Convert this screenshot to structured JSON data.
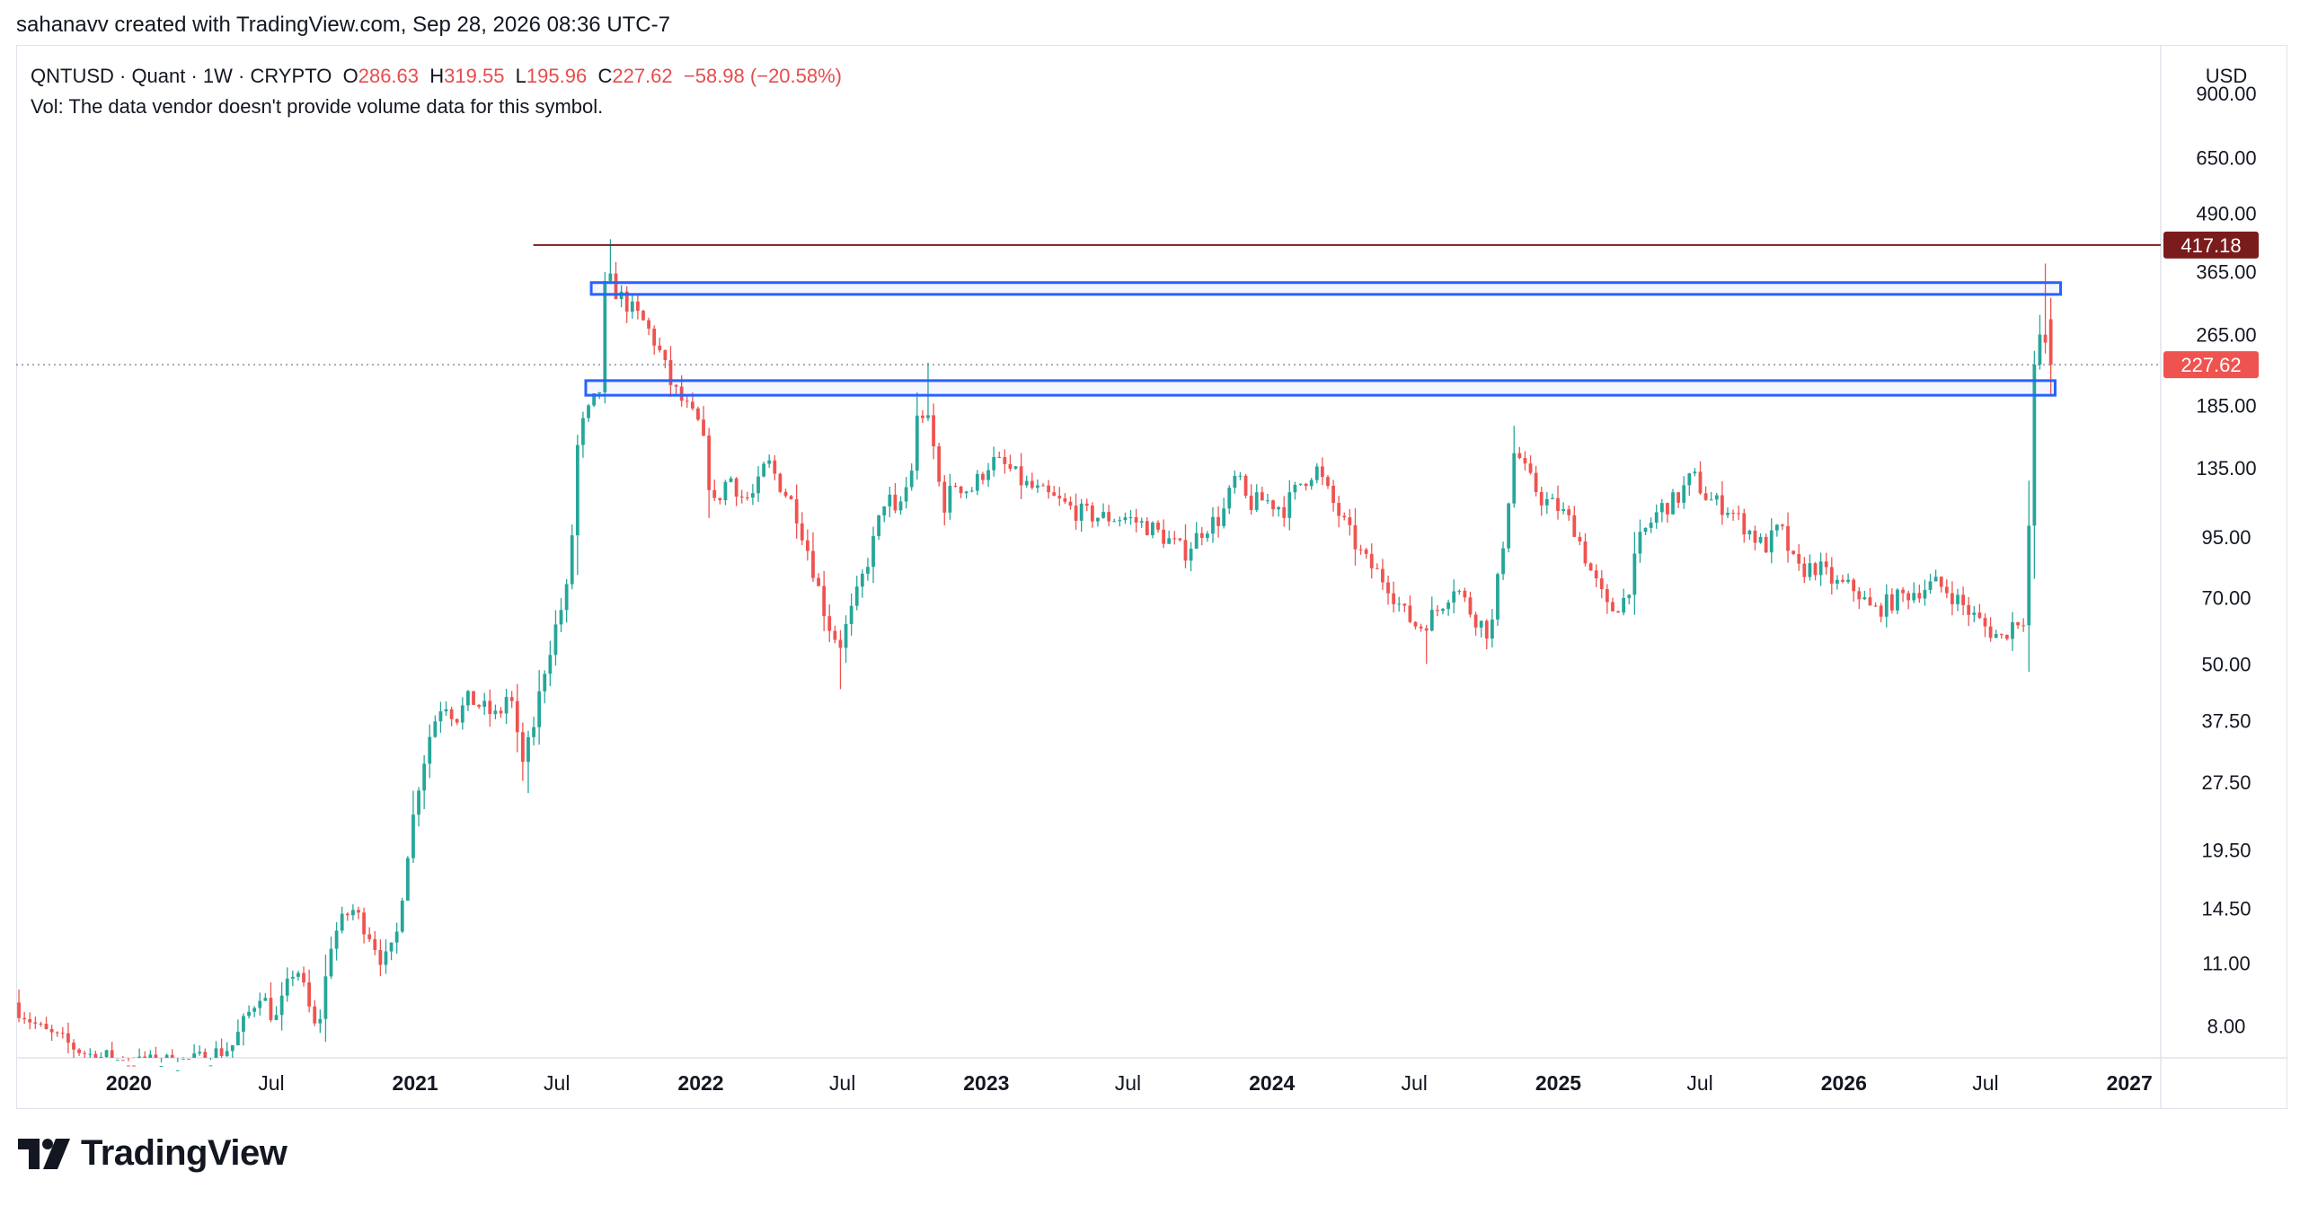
{
  "header": {
    "credit": "sahanavv created with TradingView.com, Sep 28, 2026 08:36 UTC-7"
  },
  "legend": {
    "symbol": "QNTUSD · Quant · 1W · CRYPTO",
    "o_label": "O",
    "o_value": "286.63",
    "h_label": "H",
    "h_value": "319.55",
    "l_label": "L",
    "l_value": "195.96",
    "c_label": "C",
    "c_value": "227.62",
    "change": "−58.98 (−20.58%)",
    "vol_note": "Vol: The data vendor doesn't provide volume data for this symbol."
  },
  "currency": "USD",
  "brand": "TradingView",
  "colors": {
    "up": "#26a69a",
    "down": "#ef5350",
    "resistance": "#7b1c1c",
    "zone": "#2962ff",
    "last_price": "#ef5350"
  },
  "chart_data": {
    "type": "candlestick",
    "symbol": "QNTUSD",
    "interval": "1W",
    "y_scale": "log",
    "ylim": [
      6.8,
      1150
    ],
    "xlim": [
      "2019-08-10",
      "2027-02-10"
    ],
    "y_ticks": [
      "900.00",
      "650.00",
      "490.00",
      "365.00",
      "265.00",
      "185.00",
      "135.00",
      "95.00",
      "70.00",
      "50.00",
      "37.50",
      "27.50",
      "19.50",
      "14.50",
      "11.00",
      "8.00"
    ],
    "x_ticks": [
      {
        "label": "2020",
        "date": "2020-01-01",
        "bold": true
      },
      {
        "label": "Jul",
        "date": "2020-07-01",
        "bold": false
      },
      {
        "label": "2021",
        "date": "2021-01-01",
        "bold": true
      },
      {
        "label": "Jul",
        "date": "2021-07-01",
        "bold": false
      },
      {
        "label": "2022",
        "date": "2022-01-01",
        "bold": true
      },
      {
        "label": "Jul",
        "date": "2022-07-01",
        "bold": false
      },
      {
        "label": "2023",
        "date": "2023-01-01",
        "bold": true
      },
      {
        "label": "Jul",
        "date": "2023-07-01",
        "bold": false
      },
      {
        "label": "2024",
        "date": "2024-01-01",
        "bold": true
      },
      {
        "label": "Jul",
        "date": "2024-07-01",
        "bold": false
      },
      {
        "label": "2025",
        "date": "2025-01-01",
        "bold": true
      },
      {
        "label": "Jul",
        "date": "2025-07-01",
        "bold": false
      },
      {
        "label": "2026",
        "date": "2026-01-01",
        "bold": true
      },
      {
        "label": "Jul",
        "date": "2026-07-01",
        "bold": false
      },
      {
        "label": "2027",
        "date": "2027-01-01",
        "bold": true
      }
    ],
    "resistance_line": {
      "value": 417.18,
      "label": "417.18",
      "start": "2021-06-01"
    },
    "last_price": {
      "value": 227.62,
      "label": "227.62"
    },
    "zones": [
      {
        "start": "2021-08-14",
        "end": "2026-10-05",
        "low": 325,
        "high": 345
      },
      {
        "start": "2021-08-07",
        "end": "2026-09-28",
        "low": 195,
        "high": 210
      }
    ],
    "anchors": [
      [
        "2019-08-10",
        9
      ],
      [
        "2019-09-15",
        7.8
      ],
      [
        "2019-11-15",
        6.9
      ],
      [
        "2020-01-15",
        6.6
      ],
      [
        "2020-04-01",
        6.7
      ],
      [
        "2020-05-15",
        7.2
      ],
      [
        "2020-06-20",
        9.5
      ],
      [
        "2020-07-10",
        8.2
      ],
      [
        "2020-08-05",
        11
      ],
      [
        "2020-09-01",
        7.6
      ],
      [
        "2020-09-20",
        12.5
      ],
      [
        "2020-10-15",
        14.5
      ],
      [
        "2020-11-05",
        13
      ],
      [
        "2020-11-25",
        11
      ],
      [
        "2020-12-10",
        12
      ],
      [
        "2020-12-25",
        19
      ],
      [
        "2021-01-10",
        28
      ],
      [
        "2021-01-25",
        36
      ],
      [
        "2021-02-10",
        42
      ],
      [
        "2021-02-25",
        38
      ],
      [
        "2021-03-15",
        42
      ],
      [
        "2021-04-01",
        40
      ],
      [
        "2021-04-20",
        38
      ],
      [
        "2021-05-05",
        44
      ],
      [
        "2021-05-20",
        30
      ],
      [
        "2021-06-01",
        34
      ],
      [
        "2021-06-20",
        50
      ],
      [
        "2021-07-05",
        62
      ],
      [
        "2021-07-20",
        75
      ],
      [
        "2021-08-01",
        160
      ],
      [
        "2021-08-15",
        180
      ],
      [
        "2021-08-28",
        200
      ],
      [
        "2021-09-05",
        360
      ],
      [
        "2021-09-18",
        330
      ],
      [
        "2021-10-05",
        305
      ],
      [
        "2021-10-25",
        280
      ],
      [
        "2021-11-10",
        250
      ],
      [
        "2021-11-28",
        205
      ],
      [
        "2021-12-15",
        185
      ],
      [
        "2022-01-05",
        165
      ],
      [
        "2022-01-20",
        110
      ],
      [
        "2022-02-10",
        130
      ],
      [
        "2022-02-28",
        115
      ],
      [
        "2022-03-15",
        118
      ],
      [
        "2022-03-30",
        140
      ],
      [
        "2022-04-15",
        125
      ],
      [
        "2022-05-05",
        110
      ],
      [
        "2022-05-25",
        85
      ],
      [
        "2022-06-15",
        62
      ],
      [
        "2022-07-01",
        55
      ],
      [
        "2022-07-20",
        68
      ],
      [
        "2022-08-15",
        95
      ],
      [
        "2022-08-30",
        120
      ],
      [
        "2022-09-10",
        105
      ],
      [
        "2022-09-30",
        130
      ],
      [
        "2022-10-10",
        185
      ],
      [
        "2022-10-25",
        165
      ],
      [
        "2022-11-10",
        110
      ],
      [
        "2022-11-25",
        125
      ],
      [
        "2022-12-15",
        120
      ],
      [
        "2023-01-10",
        140
      ],
      [
        "2023-02-01",
        135
      ],
      [
        "2023-02-20",
        125
      ],
      [
        "2023-03-10",
        120
      ],
      [
        "2023-04-01",
        115
      ],
      [
        "2023-05-01",
        108
      ],
      [
        "2023-06-01",
        105
      ],
      [
        "2023-07-01",
        105
      ],
      [
        "2023-08-01",
        100
      ],
      [
        "2023-08-20",
        95
      ],
      [
        "2023-09-15",
        88
      ],
      [
        "2023-10-10",
        100
      ],
      [
        "2023-11-01",
        105
      ],
      [
        "2023-11-20",
        130
      ],
      [
        "2023-12-05",
        112
      ],
      [
        "2023-12-25",
        115
      ],
      [
        "2024-01-20",
        110
      ],
      [
        "2024-02-10",
        125
      ],
      [
        "2024-03-01",
        135
      ],
      [
        "2024-03-20",
        115
      ],
      [
        "2024-04-15",
        95
      ],
      [
        "2024-05-01",
        85
      ],
      [
        "2024-06-01",
        75
      ],
      [
        "2024-06-20",
        65
      ],
      [
        "2024-07-10",
        60
      ],
      [
        "2024-08-01",
        65
      ],
      [
        "2024-08-25",
        75
      ],
      [
        "2024-09-15",
        65
      ],
      [
        "2024-10-10",
        58
      ],
      [
        "2024-10-25",
        90
      ],
      [
        "2024-11-10",
        150
      ],
      [
        "2024-11-25",
        130
      ],
      [
        "2024-12-15",
        115
      ],
      [
        "2025-01-05",
        110
      ],
      [
        "2025-01-25",
        100
      ],
      [
        "2025-02-15",
        80
      ],
      [
        "2025-03-10",
        65
      ],
      [
        "2025-04-01",
        70
      ],
      [
        "2025-04-20",
        95
      ],
      [
        "2025-05-15",
        110
      ],
      [
        "2025-06-05",
        115
      ],
      [
        "2025-06-25",
        130
      ],
      [
        "2025-07-15",
        115
      ],
      [
        "2025-08-10",
        110
      ],
      [
        "2025-09-01",
        100
      ],
      [
        "2025-09-25",
        90
      ],
      [
        "2025-10-15",
        100
      ],
      [
        "2025-11-05",
        80
      ],
      [
        "2025-12-01",
        82
      ],
      [
        "2025-12-25",
        75
      ],
      [
        "2026-01-20",
        73
      ],
      [
        "2026-02-10",
        65
      ],
      [
        "2026-03-01",
        68
      ],
      [
        "2026-04-01",
        72
      ],
      [
        "2026-05-01",
        75
      ],
      [
        "2026-05-20",
        72
      ],
      [
        "2026-06-10",
        66
      ],
      [
        "2026-07-05",
        60
      ],
      [
        "2026-07-25",
        57
      ],
      [
        "2026-08-10",
        62
      ],
      [
        "2026-08-25",
        64
      ],
      [
        "2026-09-05",
        220
      ],
      [
        "2026-09-15",
        286.63
      ],
      [
        "2026-09-21",
        227.62
      ]
    ],
    "extremes": [
      {
        "date": "2021-09-05",
        "high": 430
      },
      {
        "date": "2022-06-25",
        "low": 44
      },
      {
        "date": "2022-10-10",
        "high": 230
      },
      {
        "date": "2021-05-20",
        "low": 26
      },
      {
        "date": "2024-07-10",
        "low": 50
      },
      {
        "date": "2026-09-08",
        "high": 380
      }
    ],
    "last_candle": {
      "date": "2026-09-21",
      "open": 286.63,
      "high": 319.55,
      "low": 195.96,
      "close": 227.62
    }
  }
}
